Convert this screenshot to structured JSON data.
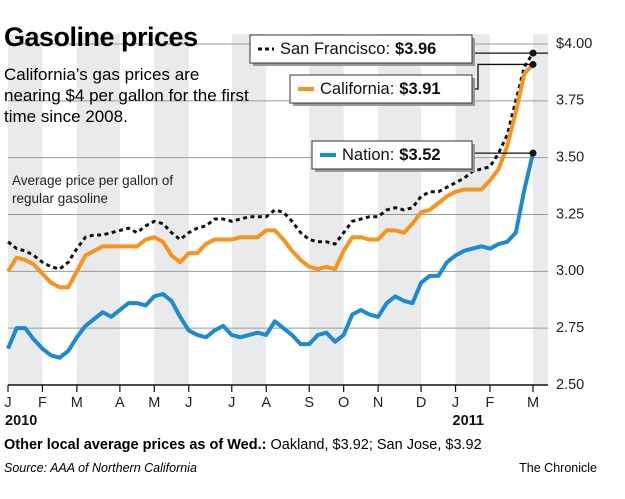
{
  "chart_data": {
    "type": "line",
    "title": "Gasoline prices",
    "subtitle": "California’s gas prices are nearing $4 per gallon for the first time since 2008.",
    "annotation": "Average price per gallon of regular gasoline",
    "categories": [
      "J",
      null,
      null,
      null,
      "F",
      null,
      null,
      null,
      "M",
      null,
      null,
      null,
      null,
      "A",
      null,
      null,
      null,
      "M",
      null,
      null,
      null,
      "J",
      null,
      null,
      null,
      null,
      "J",
      null,
      null,
      null,
      "A",
      null,
      null,
      null,
      null,
      "S",
      null,
      null,
      null,
      "O",
      null,
      null,
      null,
      "N",
      null,
      null,
      null,
      null,
      "D",
      null,
      null,
      null,
      "J",
      null,
      null,
      null,
      "F",
      null,
      null,
      null,
      null,
      "M"
    ],
    "year_labels": [
      "2010",
      "2011"
    ],
    "series": [
      {
        "name": "San Francisco:",
        "end_label": "$3.96",
        "color": "#111111",
        "dash": true,
        "values": [
          3.13,
          3.1,
          3.09,
          3.07,
          3.04,
          3.02,
          3.01,
          3.04,
          3.1,
          3.15,
          3.16,
          3.16,
          3.17,
          3.18,
          3.19,
          3.17,
          3.2,
          3.22,
          3.21,
          3.17,
          3.14,
          3.17,
          3.19,
          3.2,
          3.23,
          3.23,
          3.22,
          3.23,
          3.24,
          3.24,
          3.24,
          3.27,
          3.26,
          3.22,
          3.17,
          3.14,
          3.13,
          3.13,
          3.12,
          3.17,
          3.22,
          3.23,
          3.24,
          3.24,
          3.27,
          3.28,
          3.27,
          3.28,
          3.33,
          3.35,
          3.35,
          3.37,
          3.39,
          3.41,
          3.44,
          3.45,
          3.46,
          3.52,
          3.6,
          3.75,
          3.9,
          3.96
        ]
      },
      {
        "name": "California:",
        "end_label": "$3.91",
        "color": "#f7941d",
        "dash": false,
        "values": [
          3.0,
          3.06,
          3.05,
          3.03,
          2.99,
          2.95,
          2.93,
          2.93,
          3.0,
          3.07,
          3.09,
          3.11,
          3.11,
          3.11,
          3.11,
          3.11,
          3.14,
          3.15,
          3.13,
          3.07,
          3.04,
          3.08,
          3.08,
          3.12,
          3.14,
          3.14,
          3.14,
          3.15,
          3.15,
          3.15,
          3.18,
          3.18,
          3.14,
          3.09,
          3.05,
          3.02,
          3.01,
          3.02,
          3.01,
          3.09,
          3.15,
          3.15,
          3.14,
          3.14,
          3.18,
          3.18,
          3.17,
          3.21,
          3.26,
          3.27,
          3.3,
          3.33,
          3.35,
          3.36,
          3.36,
          3.36,
          3.4,
          3.45,
          3.55,
          3.7,
          3.87,
          3.91
        ]
      },
      {
        "name": "Nation:",
        "end_label": "$3.52",
        "color": "#1c8ad1",
        "dash": false,
        "values": [
          2.66,
          2.75,
          2.75,
          2.7,
          2.66,
          2.63,
          2.62,
          2.65,
          2.71,
          2.76,
          2.79,
          2.82,
          2.8,
          2.83,
          2.86,
          2.86,
          2.85,
          2.89,
          2.9,
          2.87,
          2.8,
          2.74,
          2.72,
          2.71,
          2.74,
          2.76,
          2.72,
          2.71,
          2.72,
          2.73,
          2.72,
          2.78,
          2.75,
          2.72,
          2.68,
          2.68,
          2.72,
          2.73,
          2.69,
          2.72,
          2.81,
          2.83,
          2.81,
          2.8,
          2.86,
          2.89,
          2.87,
          2.86,
          2.95,
          2.98,
          2.98,
          3.04,
          3.07,
          3.09,
          3.1,
          3.11,
          3.1,
          3.12,
          3.13,
          3.17,
          3.36,
          3.52
        ]
      }
    ],
    "ylim": [
      2.5,
      4.0
    ],
    "yticks": [
      {
        "value": 4.0,
        "label": "$4.00"
      },
      3.75,
      {
        "value": 3.5,
        "label": "3.50"
      },
      3.25,
      {
        "value": 3.0,
        "label": "3.00"
      },
      2.75,
      {
        "value": 2.5,
        "label": "2.50"
      }
    ],
    "grid": true,
    "footnote_bold": "Other local average prices as of Wed.:",
    "footnote": " Oakland, $3.92; San Jose, $3.92",
    "source": "Source: AAA of Northern California",
    "credit": "The Chronicle"
  }
}
